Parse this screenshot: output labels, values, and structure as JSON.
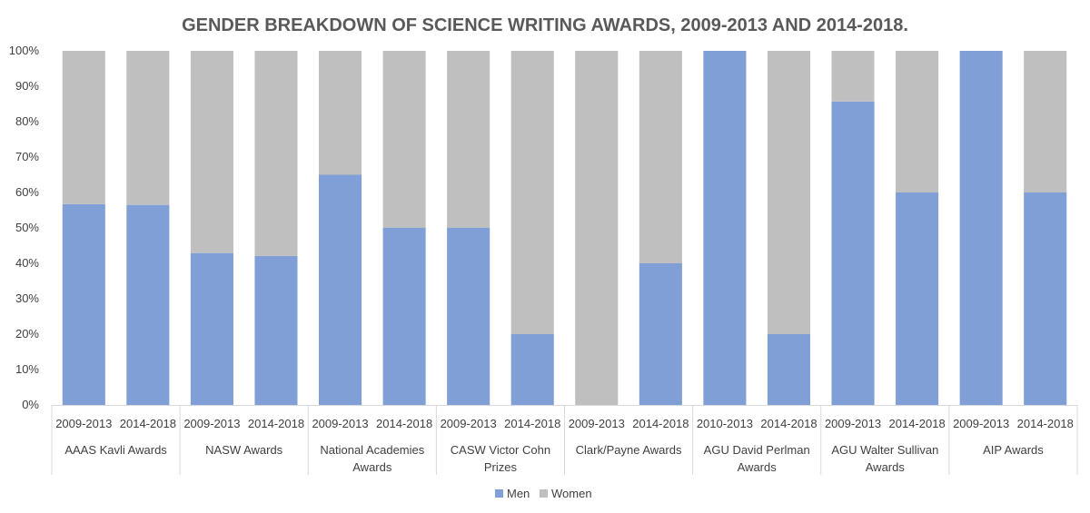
{
  "chart_data": {
    "type": "bar",
    "stacked": true,
    "percent": true,
    "title": "GENDER BREAKDOWN OF SCIENCE WRITING AWARDS, 2009-2013 AND 2014-2018.",
    "xlabel": "",
    "ylabel": "",
    "ylim": [
      0,
      100
    ],
    "y_ticks": [
      "0%",
      "10%",
      "20%",
      "30%",
      "40%",
      "50%",
      "60%",
      "70%",
      "80%",
      "90%",
      "100%"
    ],
    "groups": [
      {
        "label": [
          "AAAS Kavli Awards"
        ],
        "periods": [
          "2009-2013",
          "2014-2018"
        ]
      },
      {
        "label": [
          "NASW Awards"
        ],
        "periods": [
          "2009-2013",
          "2014-2018"
        ]
      },
      {
        "label": [
          "National Academies",
          "Awards"
        ],
        "periods": [
          "2009-2013",
          "2014-2018"
        ]
      },
      {
        "label": [
          "CASW Victor Cohn",
          "Prizes"
        ],
        "periods": [
          "2009-2013",
          "2014-2018"
        ]
      },
      {
        "label": [
          "Clark/Payne Awards"
        ],
        "periods": [
          "2009-2013",
          "2014-2018"
        ]
      },
      {
        "label": [
          "AGU David Perlman",
          "Awards"
        ],
        "periods": [
          "2010-2013",
          "2014-2018"
        ]
      },
      {
        "label": [
          "AGU Walter Sullivan",
          "Awards"
        ],
        "periods": [
          "2009-2013",
          "2014-2018"
        ]
      },
      {
        "label": [
          "AIP Awards"
        ],
        "periods": [
          "2009-2013",
          "2014-2018"
        ]
      }
    ],
    "series": [
      {
        "name": "Men",
        "color": "#7f9fd6",
        "values": [
          56.7,
          56.5,
          42.9,
          42.1,
          65,
          50,
          50,
          20,
          0,
          40,
          100,
          20,
          85.7,
          60,
          100,
          60
        ]
      },
      {
        "name": "Women",
        "color": "#bfbfbf",
        "values": [
          43.3,
          43.5,
          57.1,
          57.9,
          35,
          50,
          50,
          80,
          100,
          60,
          0,
          80,
          14.3,
          40,
          0,
          40
        ]
      }
    ],
    "legend": "bottom",
    "grid": false
  }
}
